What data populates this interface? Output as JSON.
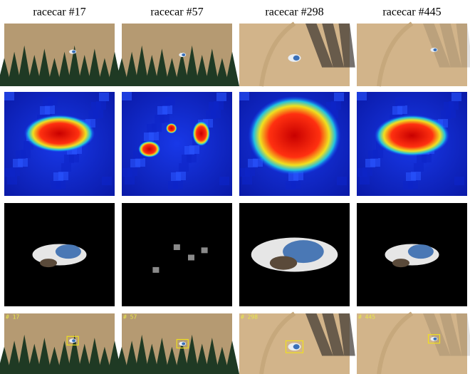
{
  "columns": [
    {
      "title": "racecar #17",
      "frame_label": "# 17"
    },
    {
      "title": "racecar #57",
      "frame_label": "# 57"
    },
    {
      "title": "racecar #298",
      "frame_label": "# 298"
    },
    {
      "title": "racecar #445",
      "frame_label": "# 445"
    }
  ]
}
